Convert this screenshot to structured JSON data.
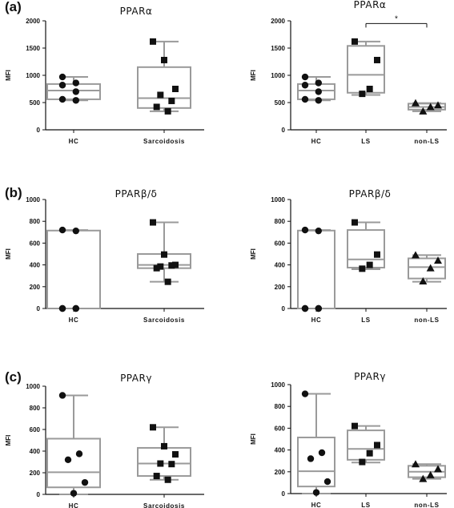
{
  "chart_data": [
    {
      "type": "box",
      "panel_label": "(a)",
      "title": "PPARα",
      "ylabel": "MFI",
      "ylim": [
        0,
        2000
      ],
      "yticks": [
        0,
        500,
        1000,
        1500,
        2000
      ],
      "categories": [
        "HC",
        "Sarcoidosis"
      ],
      "boxes": [
        {
          "category": "HC",
          "min": 540,
          "q1": 560,
          "median": 720,
          "q3": 840,
          "max": 970,
          "marker": "circle",
          "points": [
            970,
            860,
            820,
            700,
            560,
            540
          ]
        },
        {
          "category": "Sarcoidosis",
          "min": 340,
          "q1": 400,
          "median": 580,
          "q3": 1150,
          "max": 1620,
          "marker": "square",
          "points": [
            1620,
            1280,
            750,
            640,
            530,
            420,
            340
          ]
        }
      ]
    },
    {
      "type": "box",
      "panel_label": "",
      "title": "PPARα",
      "ylabel": "MFI",
      "ylim": [
        0,
        2000
      ],
      "yticks": [
        0,
        500,
        1000,
        1500,
        2000
      ],
      "categories": [
        "HC",
        "LS",
        "non-LS"
      ],
      "significance": [
        {
          "from": "LS",
          "to": "non-LS",
          "label": "*",
          "y": 1950
        }
      ],
      "boxes": [
        {
          "category": "HC",
          "min": 540,
          "q1": 560,
          "median": 720,
          "q3": 840,
          "max": 970,
          "marker": "circle",
          "points": [
            970,
            860,
            820,
            700,
            560,
            540
          ]
        },
        {
          "category": "LS",
          "min": 640,
          "q1": 680,
          "median": 1010,
          "q3": 1540,
          "max": 1620,
          "marker": "square",
          "points": [
            1620,
            1280,
            750,
            660
          ]
        },
        {
          "category": "non-LS",
          "min": 340,
          "q1": 370,
          "median": 420,
          "q3": 480,
          "max": 490,
          "marker": "triangle",
          "points": [
            490,
            450,
            420,
            340
          ]
        }
      ]
    },
    {
      "type": "box",
      "panel_label": "(b)",
      "title": "PPARβ/δ",
      "ylabel": "MFI",
      "ylim": [
        0,
        1000
      ],
      "yticks": [
        0,
        200,
        400,
        600,
        800,
        1000
      ],
      "categories": [
        "HC",
        "Sarcoidosis"
      ],
      "boxes": [
        {
          "category": "HC",
          "min": 0,
          "q1": 0,
          "median": 0,
          "q3": 715,
          "max": 720,
          "marker": "circle",
          "points": [
            720,
            712,
            0,
            0,
            0,
            0
          ]
        },
        {
          "category": "Sarcoidosis",
          "min": 245,
          "q1": 370,
          "median": 400,
          "q3": 500,
          "max": 790,
          "marker": "square",
          "points": [
            790,
            495,
            400,
            385,
            395,
            370,
            245
          ]
        }
      ]
    },
    {
      "type": "box",
      "panel_label": "",
      "title": "PPARβ/δ",
      "ylabel": "MFI",
      "ylim": [
        0,
        1000
      ],
      "yticks": [
        0,
        200,
        400,
        600,
        800,
        1000
      ],
      "categories": [
        "HC",
        "LS",
        "non-LS"
      ],
      "boxes": [
        {
          "category": "HC",
          "min": 0,
          "q1": 0,
          "median": 0,
          "q3": 715,
          "max": 720,
          "marker": "circle",
          "points": [
            720,
            712,
            0,
            0,
            0,
            0
          ]
        },
        {
          "category": "LS",
          "min": 360,
          "q1": 375,
          "median": 450,
          "q3": 720,
          "max": 790,
          "marker": "square",
          "points": [
            790,
            495,
            400,
            365
          ]
        },
        {
          "category": "non-LS",
          "min": 245,
          "q1": 275,
          "median": 380,
          "q3": 460,
          "max": 490,
          "marker": "triangle",
          "points": [
            490,
            440,
            370,
            250
          ]
        }
      ]
    },
    {
      "type": "box",
      "panel_label": "(c)",
      "title": "PPARγ",
      "ylabel": "MFI",
      "ylim": [
        0,
        1000
      ],
      "yticks": [
        0,
        200,
        400,
        600,
        800,
        1000
      ],
      "categories": [
        "HC",
        "Sarcoidosis"
      ],
      "boxes": [
        {
          "category": "HC",
          "min": 0,
          "q1": 65,
          "median": 205,
          "q3": 515,
          "max": 915,
          "marker": "circle",
          "points": [
            915,
            375,
            320,
            110,
            10
          ]
        },
        {
          "category": "Sarcoidosis",
          "min": 135,
          "q1": 170,
          "median": 285,
          "q3": 430,
          "max": 620,
          "marker": "square",
          "points": [
            620,
            445,
            370,
            285,
            280,
            170,
            135
          ]
        }
      ]
    },
    {
      "type": "box",
      "panel_label": "",
      "title": "PPARγ",
      "ylabel": "MFI",
      "ylim": [
        0,
        1000
      ],
      "yticks": [
        0,
        200,
        400,
        600,
        800,
        1000
      ],
      "categories": [
        "HC",
        "LS",
        "non-LS"
      ],
      "boxes": [
        {
          "category": "HC",
          "min": 0,
          "q1": 65,
          "median": 205,
          "q3": 515,
          "max": 915,
          "marker": "circle",
          "points": [
            915,
            375,
            320,
            110,
            10
          ]
        },
        {
          "category": "LS",
          "min": 285,
          "q1": 310,
          "median": 410,
          "q3": 580,
          "max": 620,
          "marker": "square",
          "points": [
            620,
            445,
            370,
            290
          ]
        },
        {
          "category": "non-LS",
          "min": 135,
          "q1": 150,
          "median": 200,
          "q3": 255,
          "max": 270,
          "marker": "triangle",
          "points": [
            270,
            225,
            170,
            135
          ]
        }
      ]
    }
  ],
  "colors": {
    "box": "#9a9a9a",
    "marker": "#111111",
    "axis": "#111111"
  }
}
